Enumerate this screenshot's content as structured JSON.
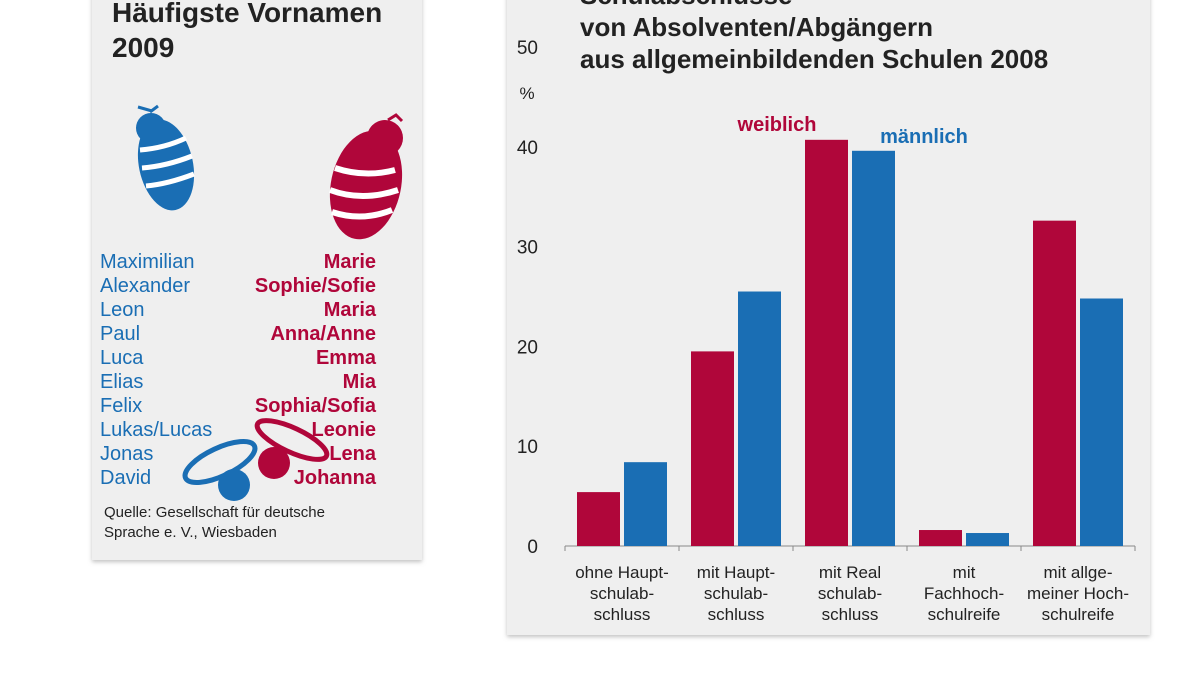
{
  "names_panel": {
    "title": [
      "Häufigste Vornamen",
      "2009"
    ],
    "boys": [
      "Maximilian",
      "Alexander",
      "Leon",
      "Paul",
      "Luca",
      "Elias",
      "Felix",
      "Lukas/Lucas",
      "Jonas",
      "David"
    ],
    "girls": [
      "Marie",
      "Sophie/Sofie",
      "Maria",
      "Anna/Anne",
      "Emma",
      "Mia",
      "Sophia/Sofia",
      "Leonie",
      "Lena",
      "Johanna"
    ],
    "source": [
      "Quelle: Gesellschaft für deutsche",
      "Sprache e. V., Wiesbaden"
    ]
  },
  "chart_data": {
    "type": "bar",
    "title": [
      "Schulabschlüsse",
      "von Absolventen/Abgängern",
      "aus allgemeinbildenden Schulen 2008"
    ],
    "y_label": "%",
    "categories": [
      [
        "ohne Haupt-",
        "schulab-",
        "schluss"
      ],
      [
        "mit Haupt-",
        "schulab-",
        "schluss"
      ],
      [
        "mit Real",
        "schulab-",
        "schluss"
      ],
      [
        "mit",
        "Fachhoch-",
        "schulreife"
      ],
      [
        "mit allge-",
        "meiner Hoch-",
        "schulreife"
      ]
    ],
    "series": [
      {
        "name": "weiblich",
        "color": "#b0063a",
        "values": [
          5.4,
          19.5,
          40.7,
          1.6,
          32.6
        ]
      },
      {
        "name": "männlich",
        "color": "#1a6eb4",
        "values": [
          8.4,
          25.5,
          39.6,
          1.3,
          24.8
        ]
      }
    ],
    "ylim": [
      0,
      50
    ],
    "yticks": [
      0,
      10,
      20,
      30,
      40,
      50
    ],
    "grid": false
  }
}
